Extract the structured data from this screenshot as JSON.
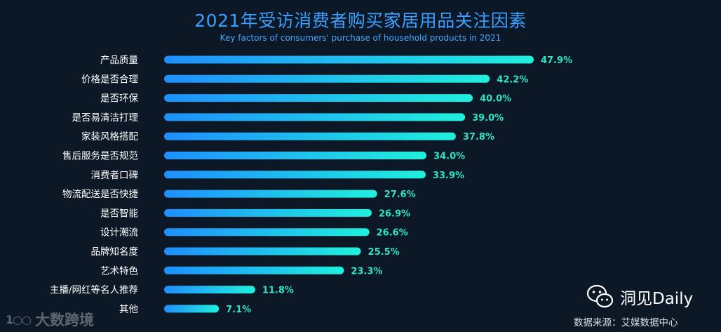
{
  "chart_data": {
    "type": "bar",
    "orientation": "horizontal",
    "title": "2021年受访消费者购买家居用品关注因素",
    "subtitle": "Key factors of consumers' purchase of household products in 2021",
    "categories": [
      "产品质量",
      "价格是否合理",
      "是否环保",
      "是否易清洁打理",
      "家装风格搭配",
      "售后服务是否规范",
      "消费者口碑",
      "物流配送是否快捷",
      "是否智能",
      "设计潮流",
      "品牌知名度",
      "艺术特色",
      "主播/网红等名人推荐",
      "其他"
    ],
    "values": [
      47.9,
      42.2,
      40.0,
      39.0,
      37.8,
      34.0,
      33.9,
      27.6,
      26.9,
      26.6,
      25.5,
      23.3,
      11.8,
      7.1
    ],
    "value_labels": [
      "47.9%",
      "42.2%",
      "40.0%",
      "39.0%",
      "37.8%",
      "34.0%",
      "33.9%",
      "27.6%",
      "26.9%",
      "26.6%",
      "25.5%",
      "23.3%",
      "11.8%",
      "7.1%"
    ],
    "xlim": [
      0,
      47.9
    ],
    "grid": false,
    "colors": {
      "bar_start": "#1e8fff",
      "bar_end": "#1ff0dc",
      "value_text": "#2fe3c5"
    }
  },
  "footer": {
    "brand_left": "大数跨境",
    "brand_left_mark": "1○○",
    "wechat_account": "洞见Daily",
    "source": "数据来源：艾媒数据中心"
  },
  "colors": {
    "background": "#0d1826",
    "title": "#3aa0ff"
  }
}
